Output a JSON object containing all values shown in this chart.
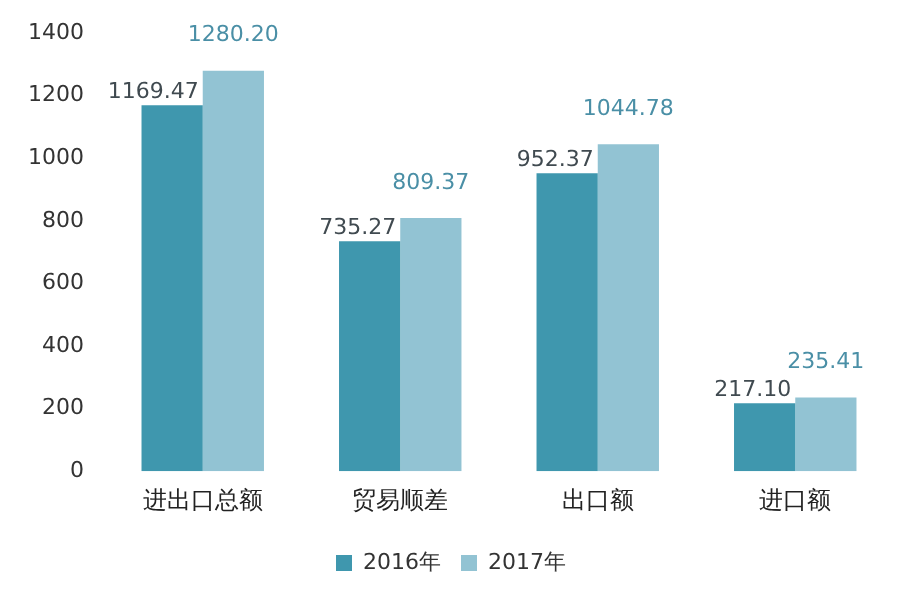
{
  "chart_data": {
    "type": "bar",
    "categories": [
      "进出口总额",
      "贸易顺差",
      "出口额",
      "进口额"
    ],
    "series": [
      {
        "name": "2016年",
        "color": "#3f97ae",
        "values": [
          1169.47,
          735.27,
          952.37,
          217.1
        ]
      },
      {
        "name": "2017年",
        "color": "#92c3d3",
        "values": [
          1280.2,
          809.37,
          1044.78,
          235.41
        ]
      }
    ],
    "value_labels": [
      [
        "1169.47",
        "735.27",
        "952.37",
        "217.10"
      ],
      [
        "1280.20",
        "809.37",
        "1044.78",
        "235.41"
      ]
    ],
    "ylim": [
      0,
      1400
    ],
    "yticks": [
      0,
      200,
      400,
      600,
      800,
      1000,
      1200,
      1400
    ],
    "grid": false,
    "legend": "bottom"
  }
}
